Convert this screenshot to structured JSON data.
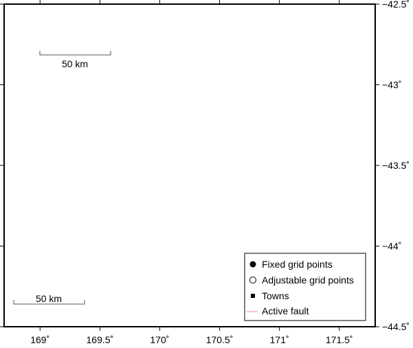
{
  "map": {
    "lon_range": [
      168.7,
      171.8
    ],
    "lat_range": [
      -44.5,
      -42.5
    ],
    "x_ticks": [
      {
        "value": 169.0,
        "label": "169˚"
      },
      {
        "value": 169.5,
        "label": "169.5˚"
      },
      {
        "value": 170.0,
        "label": "170˚"
      },
      {
        "value": 170.5,
        "label": "170.5˚"
      },
      {
        "value": 171.0,
        "label": "171˚"
      },
      {
        "value": 171.5,
        "label": "171.5˚"
      }
    ],
    "y_ticks": [
      {
        "value": -42.5,
        "label": "−42.5˚"
      },
      {
        "value": -43.0,
        "label": "−43˚"
      },
      {
        "value": -43.5,
        "label": "−43.5˚"
      },
      {
        "value": -44.0,
        "label": "−44˚"
      },
      {
        "value": -44.5,
        "label": "−44.5˚"
      }
    ]
  },
  "scale_bars": [
    {
      "label": "50 km"
    },
    {
      "label": "50 km"
    }
  ],
  "legend": {
    "items": [
      {
        "label": "Fixed grid points",
        "symbol": "filled-circle-icon"
      },
      {
        "label": "Adjustable grid points",
        "symbol": "open-circle-icon"
      },
      {
        "label": "Towns",
        "symbol": "filled-square-icon"
      },
      {
        "label": "Active fault",
        "symbol": "red-line-icon"
      }
    ]
  },
  "colors": {
    "fault": "#ff8080",
    "frame": "#000000",
    "scale_bar": "#555555"
  }
}
